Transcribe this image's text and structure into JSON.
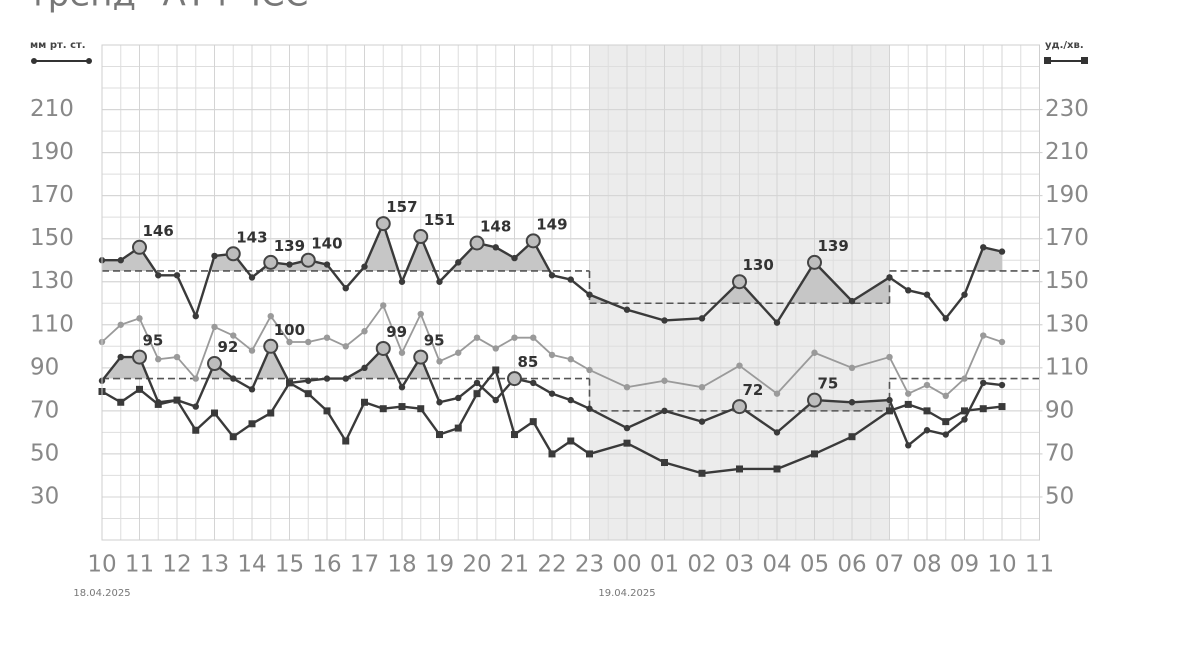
{
  "chart_data": {
    "type": "line",
    "title": "тренд \"АТ і ЧСС\"",
    "y_label": "мм рт. ст.",
    "y2_label": "уд./хв.",
    "x": [
      0,
      0.5,
      1,
      1.5,
      2,
      2.5,
      3,
      3.5,
      4,
      4.5,
      5,
      5.5,
      6,
      6.5,
      7,
      7.5,
      8,
      8.5,
      9,
      9.5,
      10,
      10.5,
      11,
      11.5,
      12,
      12.5,
      13,
      14,
      15,
      16,
      17,
      18,
      19,
      20,
      21,
      21.5,
      22,
      22.5,
      23,
      23.5,
      24
    ],
    "xlim": [
      0,
      25
    ],
    "xticks": [
      {
        "value": 0,
        "label": "10"
      },
      {
        "value": 1,
        "label": "11"
      },
      {
        "value": 2,
        "label": "12"
      },
      {
        "value": 3,
        "label": "13"
      },
      {
        "value": 4,
        "label": "14"
      },
      {
        "value": 5,
        "label": "15"
      },
      {
        "value": 6,
        "label": "16"
      },
      {
        "value": 7,
        "label": "17"
      },
      {
        "value": 8,
        "label": "18"
      },
      {
        "value": 9,
        "label": "19"
      },
      {
        "value": 10,
        "label": "20"
      },
      {
        "value": 11,
        "label": "21"
      },
      {
        "value": 12,
        "label": "22"
      },
      {
        "value": 13,
        "label": "23"
      },
      {
        "value": 14,
        "label": "00"
      },
      {
        "value": 15,
        "label": "01"
      },
      {
        "value": 16,
        "label": "02"
      },
      {
        "value": 17,
        "label": "03"
      },
      {
        "value": 18,
        "label": "04"
      },
      {
        "value": 19,
        "label": "05"
      },
      {
        "value": 20,
        "label": "06"
      },
      {
        "value": 21,
        "label": "07"
      },
      {
        "value": 22,
        "label": "08"
      },
      {
        "value": 23,
        "label": "09"
      },
      {
        "value": 24,
        "label": "10"
      },
      {
        "value": 25,
        "label": "11"
      }
    ],
    "date_labels": [
      {
        "value": 0,
        "label": "18.04.2025"
      },
      {
        "value": 14,
        "label": "19.04.2025"
      }
    ],
    "night": [
      13,
      21
    ],
    "ylim": [
      10,
      240
    ],
    "yticks": [
      30,
      50,
      70,
      90,
      110,
      130,
      150,
      170,
      190,
      210
    ],
    "y2lim": [
      30,
      260
    ],
    "y2ticks": [
      50,
      70,
      90,
      110,
      130,
      150,
      170,
      190,
      210,
      230
    ],
    "grid": true,
    "series": [
      {
        "color": "#3a3a3a",
        "marker": "circle",
        "values": [
          140,
          140,
          146,
          133,
          133,
          114,
          142,
          143,
          132,
          139,
          138,
          140,
          138,
          127,
          137,
          157,
          130,
          151,
          130,
          139,
          148,
          146,
          141,
          149,
          133,
          131,
          124,
          117,
          112,
          113,
          130,
          111,
          139,
          121,
          132,
          126,
          124,
          113,
          124,
          146,
          144
        ],
        "labeled_points": [
          2,
          7,
          9,
          11,
          15,
          17,
          20,
          23,
          30,
          32
        ],
        "thresholds": [
          {
            "x": [
              0,
              13
            ],
            "value": 135
          },
          {
            "x": [
              13,
              21
            ],
            "value": 120
          },
          {
            "x": [
              21,
              25
            ],
            "value": 135
          }
        ]
      },
      {
        "color": "#9a9a9a",
        "marker": "circle",
        "values": [
          102,
          110,
          113,
          94,
          95,
          85,
          109,
          105,
          98,
          114,
          102,
          102,
          104,
          100,
          107,
          119,
          97,
          115,
          93,
          97,
          104,
          99,
          104,
          104,
          96,
          94,
          89,
          81,
          84,
          81,
          91,
          78,
          97,
          90,
          95,
          78,
          82,
          77,
          85,
          105,
          102
        ]
      },
      {
        "color": "#3a3a3a",
        "marker": "circle",
        "values": [
          84,
          95,
          95,
          74,
          75,
          72,
          92,
          85,
          80,
          100,
          83,
          84,
          85,
          85,
          90,
          99,
          81,
          95,
          74,
          76,
          83,
          75,
          85,
          83,
          78,
          75,
          71,
          62,
          70,
          65,
          72,
          60,
          75,
          74,
          75,
          54,
          61,
          59,
          66,
          83,
          82
        ],
        "labeled_points": [
          2,
          6,
          9,
          15,
          17,
          22,
          30,
          32
        ],
        "thresholds": [
          {
            "x": [
              0,
              13
            ],
            "value": 85
          },
          {
            "x": [
              13,
              21
            ],
            "value": 70
          },
          {
            "x": [
              21,
              25
            ],
            "value": 85
          }
        ]
      },
      {
        "color": "#3a3a3a",
        "marker": "square",
        "axis": "y2",
        "values": [
          99,
          94,
          100,
          93,
          95,
          81,
          89,
          78,
          84,
          89,
          103,
          98,
          90,
          76,
          94,
          91,
          92,
          91,
          79,
          82,
          98,
          109,
          79,
          85,
          70,
          76,
          70,
          75,
          66,
          61,
          63,
          63,
          70,
          78,
          90,
          93,
          90,
          85,
          90,
          91,
          92
        ]
      }
    ]
  }
}
